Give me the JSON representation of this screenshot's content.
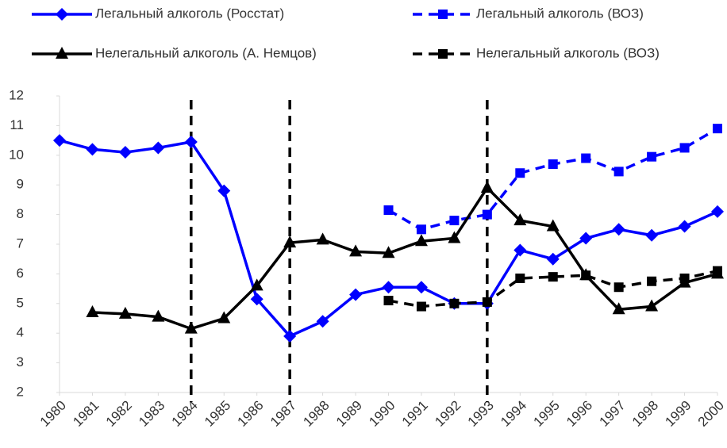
{
  "chart_data": {
    "type": "line",
    "x": [
      1980,
      1981,
      1982,
      1983,
      1984,
      1985,
      1986,
      1987,
      1988,
      1989,
      1990,
      1991,
      1992,
      1993,
      1994,
      1995,
      1996,
      1997,
      1998,
      1999,
      2000
    ],
    "xlim": [
      1980,
      2000
    ],
    "xticks": [
      1980,
      1981,
      1982,
      1983,
      1984,
      1985,
      1986,
      1987,
      1988,
      1989,
      1990,
      1991,
      1992,
      1993,
      1994,
      1995,
      1996,
      1997,
      1998,
      1999,
      2000
    ],
    "ylim": [
      2,
      12
    ],
    "yticks": [
      2,
      3,
      4,
      5,
      6,
      7,
      8,
      9,
      10,
      11,
      12
    ],
    "vlines": [
      1984,
      1987,
      1993
    ],
    "grid": false,
    "series": [
      {
        "name": "Легальный алкоголь (Росстат)",
        "color": "#0000ff",
        "dashed": false,
        "marker": "diamond",
        "values": [
          10.5,
          10.2,
          10.1,
          10.25,
          10.45,
          8.8,
          5.15,
          3.9,
          4.4,
          5.3,
          5.55,
          5.55,
          5.0,
          5.0,
          6.8,
          6.5,
          7.2,
          7.5,
          7.3,
          7.6,
          8.1
        ]
      },
      {
        "name": "Легальный алкоголь (ВОЗ)",
        "color": "#0000ff",
        "dashed": true,
        "marker": "square",
        "values": [
          null,
          null,
          null,
          null,
          null,
          null,
          null,
          null,
          null,
          null,
          8.15,
          7.5,
          7.8,
          8.0,
          9.4,
          9.7,
          9.9,
          9.45,
          9.95,
          10.25,
          10.9
        ]
      },
      {
        "name": "Нелегальный алкоголь (А. Немцов)",
        "color": "#000000",
        "dashed": false,
        "marker": "triangle",
        "values": [
          null,
          4.7,
          4.65,
          4.55,
          4.15,
          4.5,
          5.6,
          7.05,
          7.15,
          6.75,
          6.7,
          7.1,
          7.2,
          8.9,
          7.8,
          7.6,
          5.95,
          4.8,
          4.9,
          5.7,
          6.0
        ]
      },
      {
        "name": "Нелегальный алкоголь (ВОЗ)",
        "color": "#000000",
        "dashed": true,
        "marker": "square",
        "values": [
          null,
          null,
          null,
          null,
          null,
          null,
          null,
          null,
          null,
          null,
          5.1,
          4.9,
          5.0,
          5.05,
          5.85,
          5.9,
          5.95,
          5.55,
          5.75,
          5.85,
          6.1
        ]
      }
    ]
  }
}
